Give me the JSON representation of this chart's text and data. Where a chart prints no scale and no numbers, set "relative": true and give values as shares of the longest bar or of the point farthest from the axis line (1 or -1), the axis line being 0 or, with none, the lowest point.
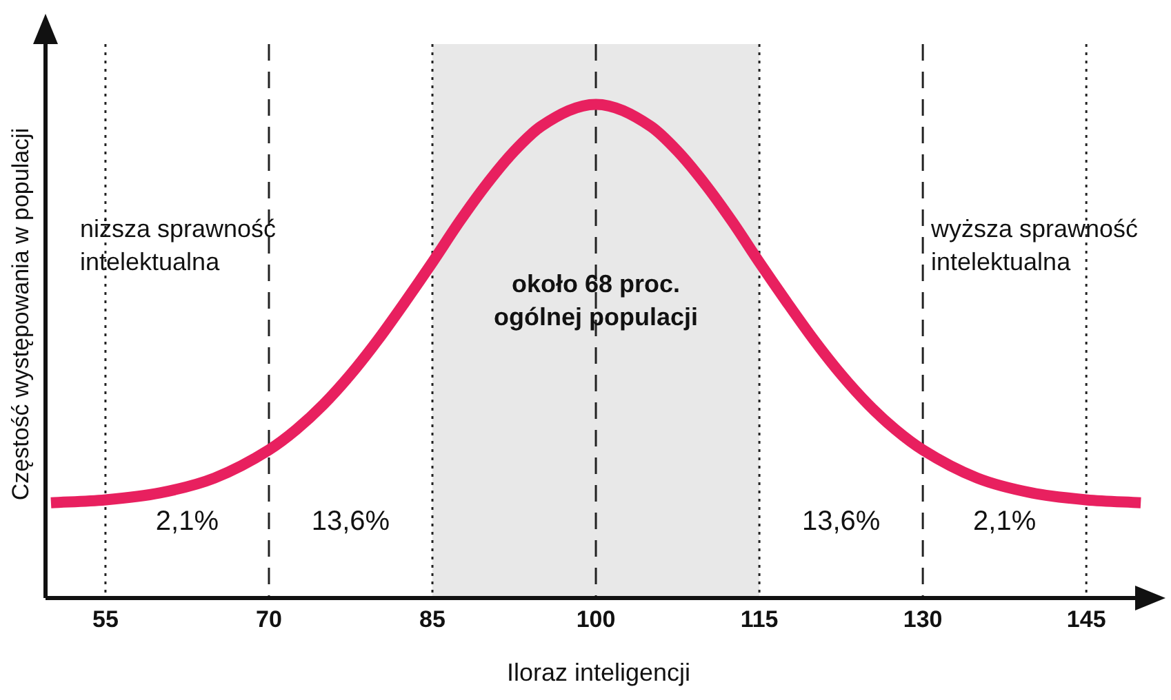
{
  "chart_data": {
    "type": "line",
    "relative": true,
    "xlabel": "Iloraz inteligencji",
    "ylabel": "Częstość występowania w populacji",
    "x": [
      50,
      55,
      60,
      65,
      70,
      72.5,
      75,
      77.5,
      80,
      82.5,
      85,
      87.5,
      90,
      92.5,
      95,
      100,
      105,
      107.5,
      110,
      112.5,
      115,
      117.5,
      120,
      122.5,
      125,
      127.5,
      130,
      135,
      140,
      145,
      150
    ],
    "series": [
      {
        "color": "#e8205f",
        "values": [
          0.193,
          0.199,
          0.213,
          0.243,
          0.3,
          0.341,
          0.392,
          0.453,
          0.523,
          0.6,
          0.68,
          0.763,
          0.839,
          0.905,
          0.956,
          1.0,
          0.956,
          0.905,
          0.839,
          0.763,
          0.68,
          0.6,
          0.523,
          0.453,
          0.392,
          0.341,
          0.3,
          0.243,
          0.213,
          0.199,
          0.193
        ]
      }
    ],
    "xlim": [
      49.5,
      151
    ],
    "xticks": [
      55,
      70,
      85,
      100,
      115,
      130,
      145
    ],
    "grid": false,
    "legend": false,
    "marker": "none",
    "line_style": "solid",
    "ref_lines": [
      {
        "axis": "x",
        "value": 55,
        "line_style": "dotted",
        "color": "#222222"
      },
      {
        "axis": "x",
        "value": 70,
        "line_style": "dashed",
        "color": "#222222"
      },
      {
        "axis": "x",
        "value": 85,
        "line_style": "dotted",
        "color": "#222222"
      },
      {
        "axis": "x",
        "value": 100,
        "line_style": "dashed",
        "color": "#222222"
      },
      {
        "axis": "x",
        "value": 115,
        "line_style": "dotted",
        "color": "#222222"
      },
      {
        "axis": "x",
        "value": 130,
        "line_style": "dashed",
        "color": "#222222"
      },
      {
        "axis": "x",
        "value": 145,
        "line_style": "dotted",
        "color": "#222222"
      }
    ],
    "bands": [
      {
        "axis": "x",
        "from": 85,
        "to": 115,
        "label": "około 68 proc. ogólnej populacji",
        "color": "#e8e8e8"
      }
    ],
    "annotations": [
      "niższa sprawność intelektualna",
      "wyższa sprawność intelektualna",
      "2,1%",
      "13,6%",
      "13,6%",
      "2,1%"
    ]
  }
}
